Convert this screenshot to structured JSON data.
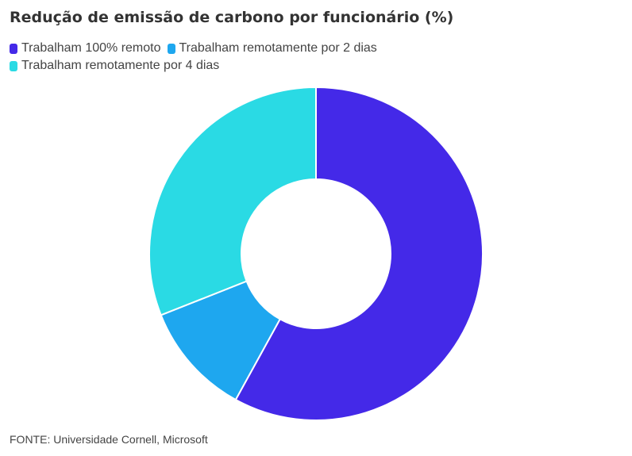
{
  "title": "Redução de emissão de carbono por funcionário (%)",
  "source": "FONTE: Universidade Cornell, Microsoft",
  "chart_data": {
    "type": "pie",
    "donut": true,
    "title": "Redução de emissão de carbono por funcionário (%)",
    "legend_position": "top-left",
    "categories": [
      "Trabalham 100% remoto",
      "Trabalham remotamente por 2 dias",
      "Trabalham remotamente por 4 dias"
    ],
    "values": [
      58,
      11,
      31
    ],
    "colors": [
      "#4429E8",
      "#1EA7EF",
      "#2ADAE4"
    ]
  }
}
